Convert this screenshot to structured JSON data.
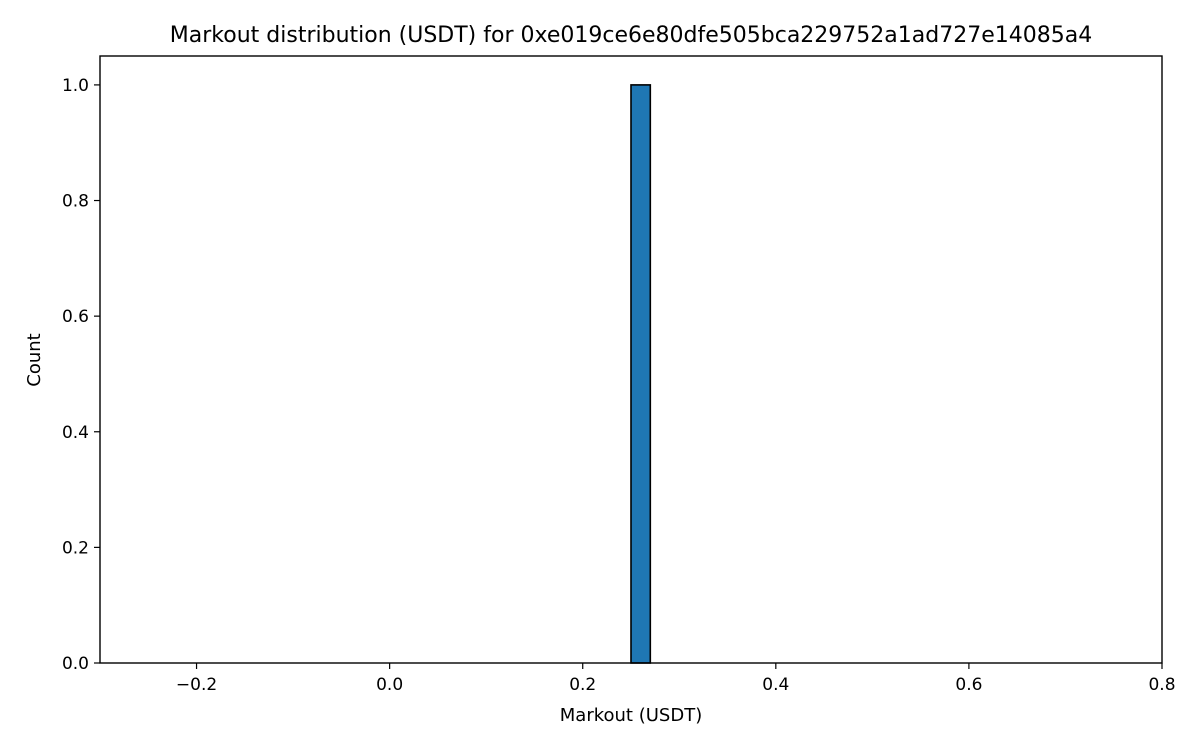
{
  "chart_data": {
    "type": "bar",
    "title": "Markout distribution (USDT) for 0xe019ce6e80dfe505bca229752a1ad727e14085a4",
    "xlabel": "Markout (USDT)",
    "ylabel": "Count",
    "xlim": [
      -0.3,
      0.8
    ],
    "ylim": [
      0,
      1.05
    ],
    "xticks": [
      -0.2,
      0.0,
      0.2,
      0.4,
      0.6,
      0.8
    ],
    "xtick_labels": [
      "−0.2",
      "0.0",
      "0.2",
      "0.4",
      "0.6",
      "0.8"
    ],
    "yticks": [
      0.0,
      0.2,
      0.4,
      0.6,
      0.8,
      1.0
    ],
    "ytick_labels": [
      "0.0",
      "0.2",
      "0.4",
      "0.6",
      "0.8",
      "1.0"
    ],
    "bins": {
      "start": -0.25,
      "end": 0.75,
      "count": 50,
      "values": [
        0,
        0,
        0,
        0,
        0,
        0,
        0,
        0,
        0,
        0,
        0,
        0,
        0,
        0,
        0,
        0,
        0,
        0,
        0,
        0,
        0,
        0,
        0,
        0,
        0,
        1,
        0,
        0,
        0,
        0,
        0,
        0,
        0,
        0,
        0,
        0,
        0,
        0,
        0,
        0,
        0,
        0,
        0,
        0,
        0,
        0,
        0,
        0,
        0,
        0
      ]
    },
    "bar_color": "#1f77b4",
    "edge_color": "#000000",
    "grid": false
  }
}
